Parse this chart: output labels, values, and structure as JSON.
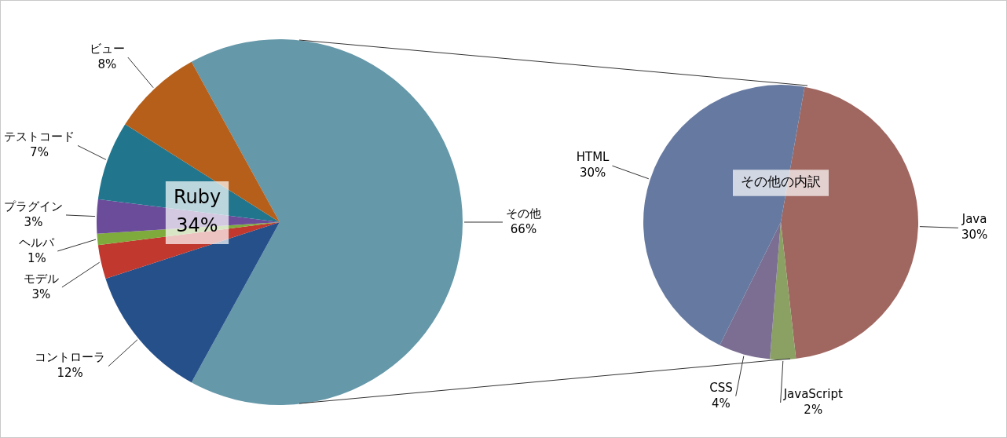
{
  "chart_data": [
    {
      "type": "pie",
      "categories": [
        "その他",
        "コントローラ",
        "モデル",
        "ヘルパ",
        "プラグイン",
        "テストコード",
        "ビュー"
      ],
      "values": [
        66,
        12,
        3,
        1,
        3,
        7,
        8
      ],
      "value_labels": [
        "66%",
        "12%",
        "3%",
        "1%",
        "3%",
        "7%",
        "8%"
      ],
      "colors": [
        "#6598a9",
        "#26508a",
        "#c0382e",
        "#7eab3c",
        "#6b4c9a",
        "#21768e",
        "#b55f1a"
      ],
      "annotations": [
        "Ruby\n34%"
      ]
    },
    {
      "type": "pie",
      "categories": [
        "Java",
        "JavaScript",
        "CSS",
        "HTML"
      ],
      "values": [
        30,
        2,
        4,
        30
      ],
      "value_labels": [
        "30%",
        "2%",
        "4%",
        "30%"
      ],
      "colors": [
        "#a06660",
        "#8aa163",
        "#7b6e92",
        "#6679a0"
      ],
      "annotations": [
        "その他の内訳"
      ]
    }
  ]
}
